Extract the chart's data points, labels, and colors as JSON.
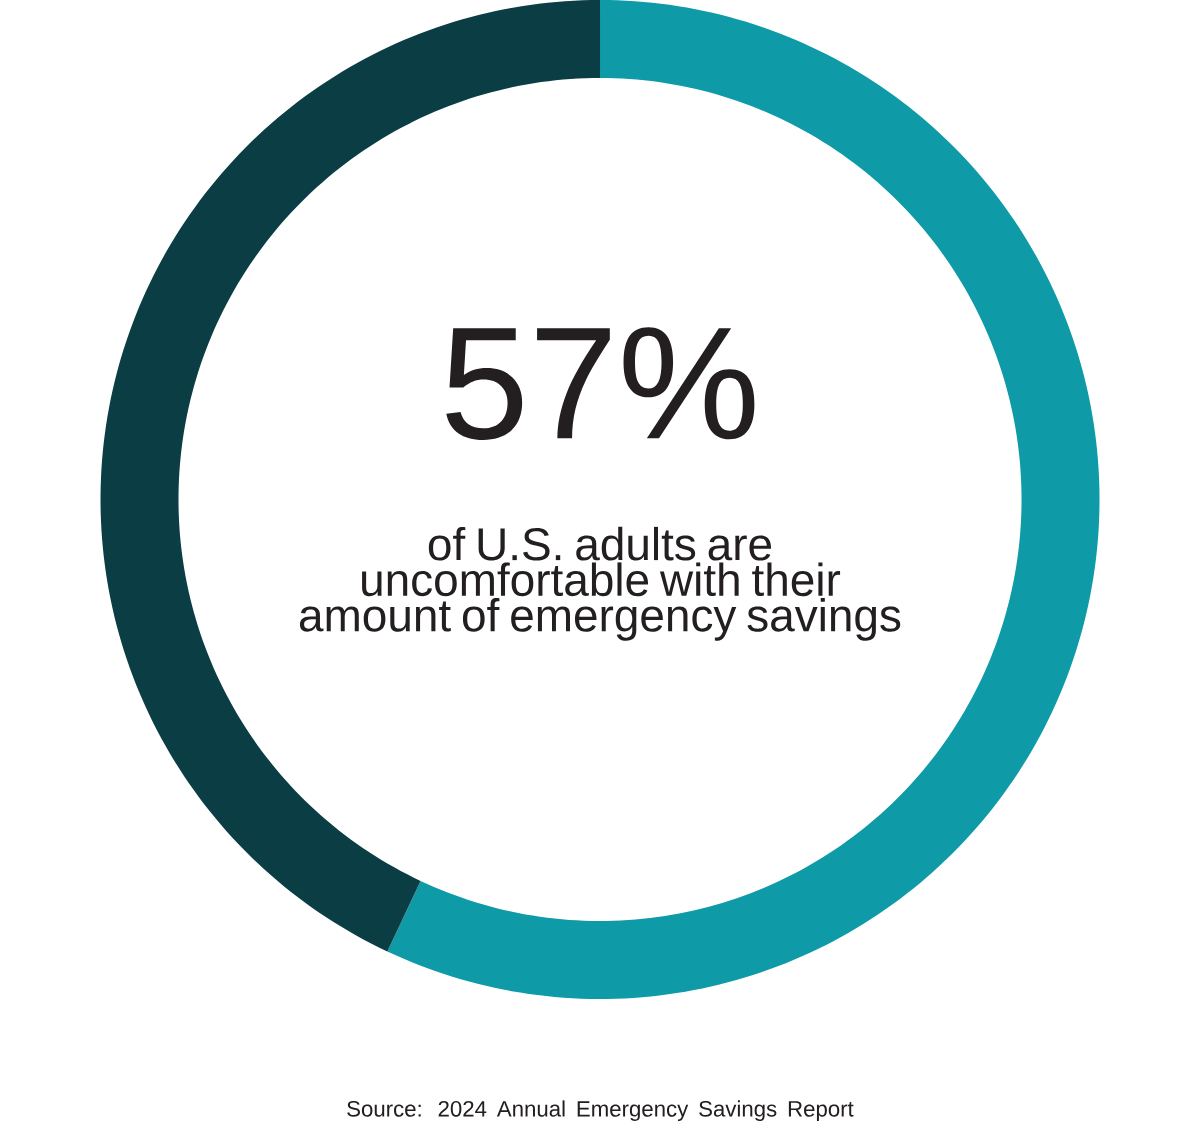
{
  "chart_data": {
    "type": "donut",
    "categories": [
      null,
      null
    ],
    "values": [
      57,
      43
    ],
    "colors": [
      "#0e9aa7",
      "#0b3d45"
    ],
    "annotations": [
      "57%",
      "of U.S. adults are uncomfortable with their amount of emergency savings",
      "Source: 2024 Annual Emergency Savings Report"
    ]
  }
}
